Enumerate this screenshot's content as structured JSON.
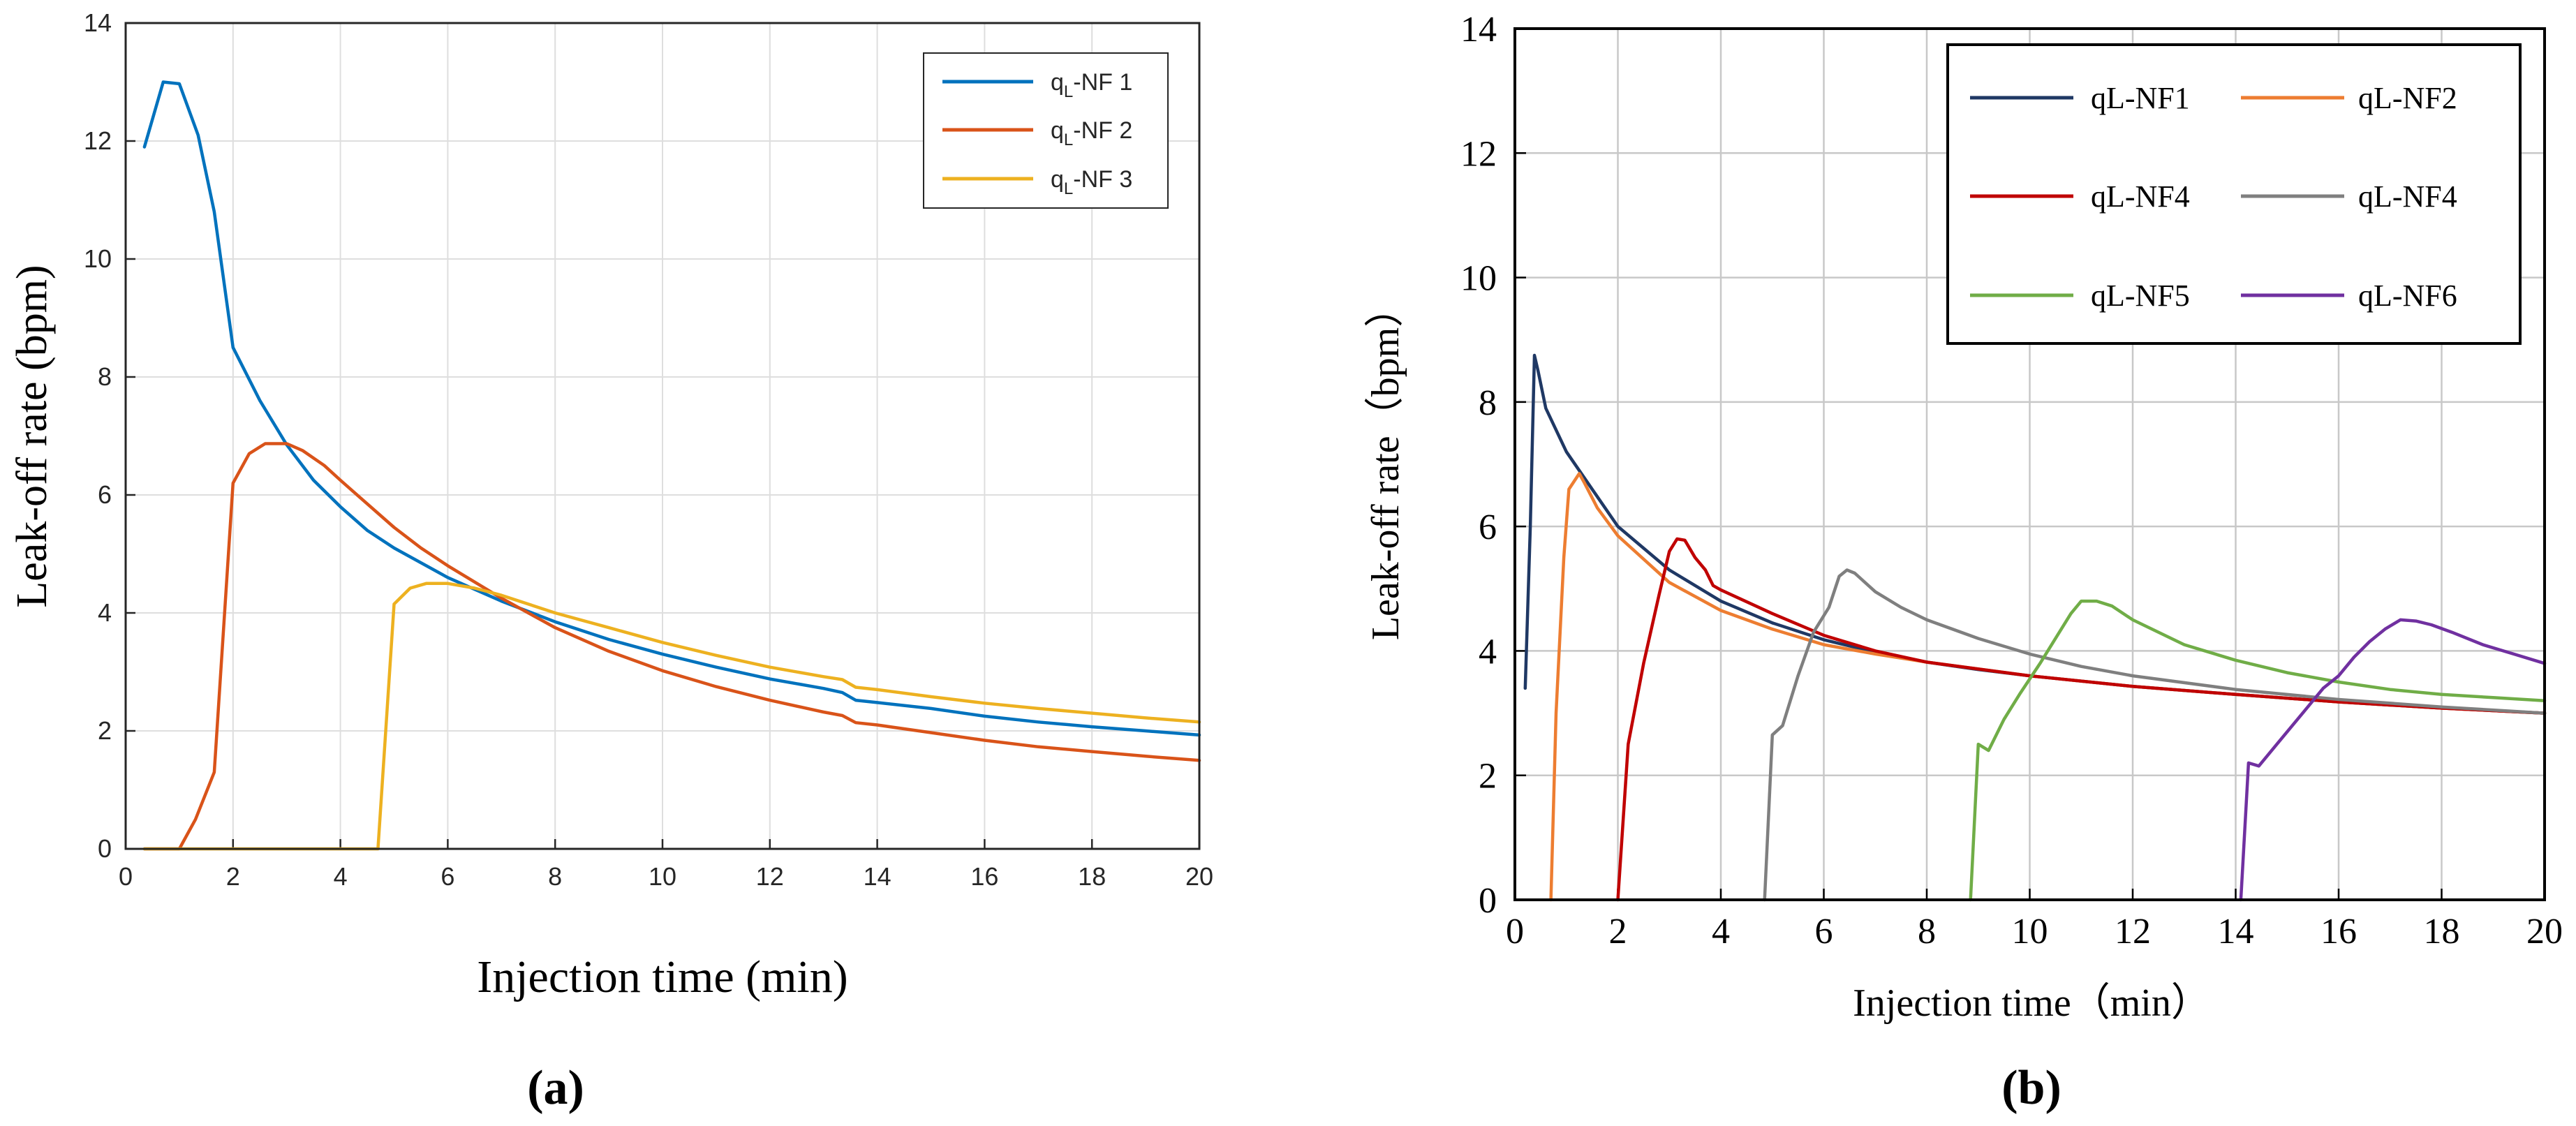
{
  "chart_data": [
    {
      "type": "line",
      "panel_label": "(a)",
      "xlabel": "Injection time (min)",
      "ylabel": "Leak-off rate (bpm)",
      "xlim": [
        0,
        20
      ],
      "ylim": [
        0,
        14
      ],
      "xticks": [
        0,
        2,
        4,
        6,
        8,
        10,
        12,
        14,
        16,
        18,
        20
      ],
      "yticks": [
        0,
        2,
        4,
        6,
        8,
        10,
        12,
        14
      ],
      "grid": true,
      "legend_position": "top-right",
      "series": [
        {
          "name_main": "q",
          "name_sub": "L",
          "name_rest": "-NF 1",
          "color": "#0072BD",
          "points": [
            [
              0.35,
              11.9
            ],
            [
              0.7,
              13.0
            ],
            [
              1.0,
              12.97
            ],
            [
              1.35,
              12.1
            ],
            [
              1.65,
              10.8
            ],
            [
              2.0,
              8.5
            ],
            [
              2.5,
              7.6
            ],
            [
              3.0,
              6.85
            ],
            [
              3.5,
              6.25
            ],
            [
              4.0,
              5.8
            ],
            [
              4.5,
              5.4
            ],
            [
              5.0,
              5.1
            ],
            [
              6.0,
              4.6
            ],
            [
              7.0,
              4.2
            ],
            [
              8.0,
              3.85
            ],
            [
              9.0,
              3.55
            ],
            [
              10.0,
              3.3
            ],
            [
              11.0,
              3.08
            ],
            [
              12.0,
              2.88
            ],
            [
              13.0,
              2.72
            ],
            [
              13.35,
              2.65
            ],
            [
              13.6,
              2.52
            ],
            [
              14.0,
              2.48
            ],
            [
              15.0,
              2.38
            ],
            [
              16.0,
              2.25
            ],
            [
              17.0,
              2.15
            ],
            [
              18.0,
              2.07
            ],
            [
              19.0,
              2.0
            ],
            [
              20.0,
              1.93
            ]
          ]
        },
        {
          "name_main": "q",
          "name_sub": "L",
          "name_rest": "-NF 2",
          "color": "#D95319",
          "points": [
            [
              0.35,
              0.0
            ],
            [
              1.0,
              0.0
            ],
            [
              1.3,
              0.5
            ],
            [
              1.65,
              1.3
            ],
            [
              2.0,
              6.2
            ],
            [
              2.3,
              6.7
            ],
            [
              2.6,
              6.87
            ],
            [
              3.0,
              6.87
            ],
            [
              3.3,
              6.75
            ],
            [
              3.7,
              6.5
            ],
            [
              4.0,
              6.25
            ],
            [
              4.5,
              5.85
            ],
            [
              5.0,
              5.45
            ],
            [
              5.5,
              5.1
            ],
            [
              6.0,
              4.8
            ],
            [
              7.0,
              4.25
            ],
            [
              8.0,
              3.75
            ],
            [
              9.0,
              3.35
            ],
            [
              10.0,
              3.02
            ],
            [
              11.0,
              2.75
            ],
            [
              12.0,
              2.52
            ],
            [
              13.0,
              2.32
            ],
            [
              13.35,
              2.26
            ],
            [
              13.6,
              2.14
            ],
            [
              14.0,
              2.1
            ],
            [
              15.0,
              1.97
            ],
            [
              16.0,
              1.84
            ],
            [
              17.0,
              1.73
            ],
            [
              18.0,
              1.65
            ],
            [
              19.0,
              1.57
            ],
            [
              20.0,
              1.5
            ]
          ]
        },
        {
          "name_main": "q",
          "name_sub": "L",
          "name_rest": "-NF 3",
          "color": "#EDB120",
          "points": [
            [
              0.35,
              0.0
            ],
            [
              4.7,
              0.0
            ],
            [
              5.0,
              4.15
            ],
            [
              5.3,
              4.42
            ],
            [
              5.6,
              4.5
            ],
            [
              6.0,
              4.5
            ],
            [
              6.5,
              4.42
            ],
            [
              7.0,
              4.3
            ],
            [
              8.0,
              4.0
            ],
            [
              9.0,
              3.75
            ],
            [
              10.0,
              3.5
            ],
            [
              11.0,
              3.28
            ],
            [
              12.0,
              3.08
            ],
            [
              13.0,
              2.92
            ],
            [
              13.35,
              2.87
            ],
            [
              13.6,
              2.74
            ],
            [
              14.0,
              2.7
            ],
            [
              15.0,
              2.58
            ],
            [
              16.0,
              2.47
            ],
            [
              17.0,
              2.38
            ],
            [
              18.0,
              2.3
            ],
            [
              19.0,
              2.22
            ],
            [
              20.0,
              2.15
            ]
          ]
        }
      ]
    },
    {
      "type": "line",
      "panel_label": "(b)",
      "xlabel": "Injection time（min）",
      "ylabel": "Leak-off rate（bpm）",
      "xlim": [
        0,
        20
      ],
      "ylim": [
        0,
        14
      ],
      "xticks": [
        0,
        2,
        4,
        6,
        8,
        10,
        12,
        14,
        16,
        18,
        20
      ],
      "yticks": [
        0,
        2,
        4,
        6,
        8,
        10,
        12,
        14
      ],
      "grid": true,
      "legend_position": "top-right",
      "series": [
        {
          "name": "qL-NF1",
          "color": "#1F3864",
          "points": [
            [
              0.2,
              3.4
            ],
            [
              0.3,
              6.0
            ],
            [
              0.38,
              8.75
            ],
            [
              0.45,
              8.5
            ],
            [
              0.6,
              7.9
            ],
            [
              1.0,
              7.2
            ],
            [
              1.5,
              6.6
            ],
            [
              2.0,
              6.0
            ],
            [
              3.0,
              5.3
            ],
            [
              4.0,
              4.8
            ],
            [
              5.0,
              4.45
            ],
            [
              6.0,
              4.18
            ],
            [
              7.0,
              3.98
            ],
            [
              8.0,
              3.82
            ],
            [
              9.0,
              3.7
            ],
            [
              10.0,
              3.6
            ],
            [
              12.0,
              3.43
            ],
            [
              14.0,
              3.3
            ],
            [
              16.0,
              3.18
            ],
            [
              18.0,
              3.08
            ],
            [
              20.0,
              3.0
            ]
          ]
        },
        {
          "name": "qL-NF2",
          "color": "#ED7D31",
          "points": [
            [
              0.7,
              0.0
            ],
            [
              0.8,
              3.0
            ],
            [
              0.95,
              5.5
            ],
            [
              1.05,
              6.6
            ],
            [
              1.25,
              6.85
            ],
            [
              1.35,
              6.7
            ],
            [
              1.6,
              6.3
            ],
            [
              2.0,
              5.85
            ],
            [
              3.0,
              5.1
            ],
            [
              4.0,
              4.65
            ],
            [
              5.0,
              4.35
            ],
            [
              6.0,
              4.1
            ],
            [
              7.0,
              3.95
            ],
            [
              8.0,
              3.82
            ],
            [
              10.0,
              3.6
            ],
            [
              12.0,
              3.43
            ],
            [
              14.0,
              3.3
            ],
            [
              16.0,
              3.18
            ],
            [
              18.0,
              3.08
            ],
            [
              20.0,
              3.0
            ]
          ]
        },
        {
          "name": "qL-NF4",
          "color": "#C00000",
          "points": [
            [
              2.0,
              0.0
            ],
            [
              2.2,
              2.5
            ],
            [
              2.5,
              3.8
            ],
            [
              2.8,
              4.9
            ],
            [
              3.0,
              5.6
            ],
            [
              3.15,
              5.8
            ],
            [
              3.3,
              5.78
            ],
            [
              3.5,
              5.5
            ],
            [
              3.7,
              5.3
            ],
            [
              3.85,
              5.05
            ],
            [
              4.0,
              4.98
            ],
            [
              5.0,
              4.6
            ],
            [
              6.0,
              4.25
            ],
            [
              7.0,
              4.0
            ],
            [
              8.0,
              3.82
            ],
            [
              10.0,
              3.6
            ],
            [
              12.0,
              3.43
            ],
            [
              14.0,
              3.3
            ],
            [
              16.0,
              3.18
            ],
            [
              18.0,
              3.08
            ],
            [
              20.0,
              3.0
            ]
          ]
        },
        {
          "name": "qL-NF4",
          "color": "#7F7F7F",
          "points": [
            [
              4.85,
              0.0
            ],
            [
              5.0,
              2.65
            ],
            [
              5.2,
              2.8
            ],
            [
              5.5,
              3.6
            ],
            [
              5.8,
              4.3
            ],
            [
              6.1,
              4.7
            ],
            [
              6.3,
              5.2
            ],
            [
              6.45,
              5.3
            ],
            [
              6.6,
              5.25
            ],
            [
              7.0,
              4.95
            ],
            [
              7.5,
              4.7
            ],
            [
              8.0,
              4.5
            ],
            [
              9.0,
              4.2
            ],
            [
              10.0,
              3.95
            ],
            [
              11.0,
              3.75
            ],
            [
              12.0,
              3.6
            ],
            [
              14.0,
              3.38
            ],
            [
              16.0,
              3.22
            ],
            [
              18.0,
              3.1
            ],
            [
              20.0,
              3.0
            ]
          ]
        },
        {
          "name": "qL-NF5",
          "color": "#70AD47",
          "points": [
            [
              8.85,
              0.0
            ],
            [
              9.0,
              2.5
            ],
            [
              9.2,
              2.4
            ],
            [
              9.5,
              2.9
            ],
            [
              9.8,
              3.3
            ],
            [
              10.2,
              3.8
            ],
            [
              10.5,
              4.2
            ],
            [
              10.8,
              4.6
            ],
            [
              11.0,
              4.8
            ],
            [
              11.3,
              4.8
            ],
            [
              11.6,
              4.72
            ],
            [
              12.0,
              4.5
            ],
            [
              13.0,
              4.1
            ],
            [
              14.0,
              3.85
            ],
            [
              15.0,
              3.65
            ],
            [
              16.0,
              3.5
            ],
            [
              17.0,
              3.38
            ],
            [
              18.0,
              3.3
            ],
            [
              19.0,
              3.25
            ],
            [
              20.0,
              3.2
            ]
          ]
        },
        {
          "name": "qL-NF6",
          "color": "#7030A0",
          "points": [
            [
              14.1,
              0.0
            ],
            [
              14.25,
              2.2
            ],
            [
              14.45,
              2.15
            ],
            [
              14.8,
              2.5
            ],
            [
              15.1,
              2.8
            ],
            [
              15.4,
              3.1
            ],
            [
              15.7,
              3.4
            ],
            [
              16.0,
              3.6
            ],
            [
              16.3,
              3.9
            ],
            [
              16.6,
              4.15
            ],
            [
              16.9,
              4.35
            ],
            [
              17.2,
              4.5
            ],
            [
              17.5,
              4.48
            ],
            [
              17.8,
              4.42
            ],
            [
              18.2,
              4.3
            ],
            [
              18.8,
              4.1
            ],
            [
              19.4,
              3.95
            ],
            [
              20.0,
              3.8
            ]
          ]
        }
      ]
    }
  ]
}
